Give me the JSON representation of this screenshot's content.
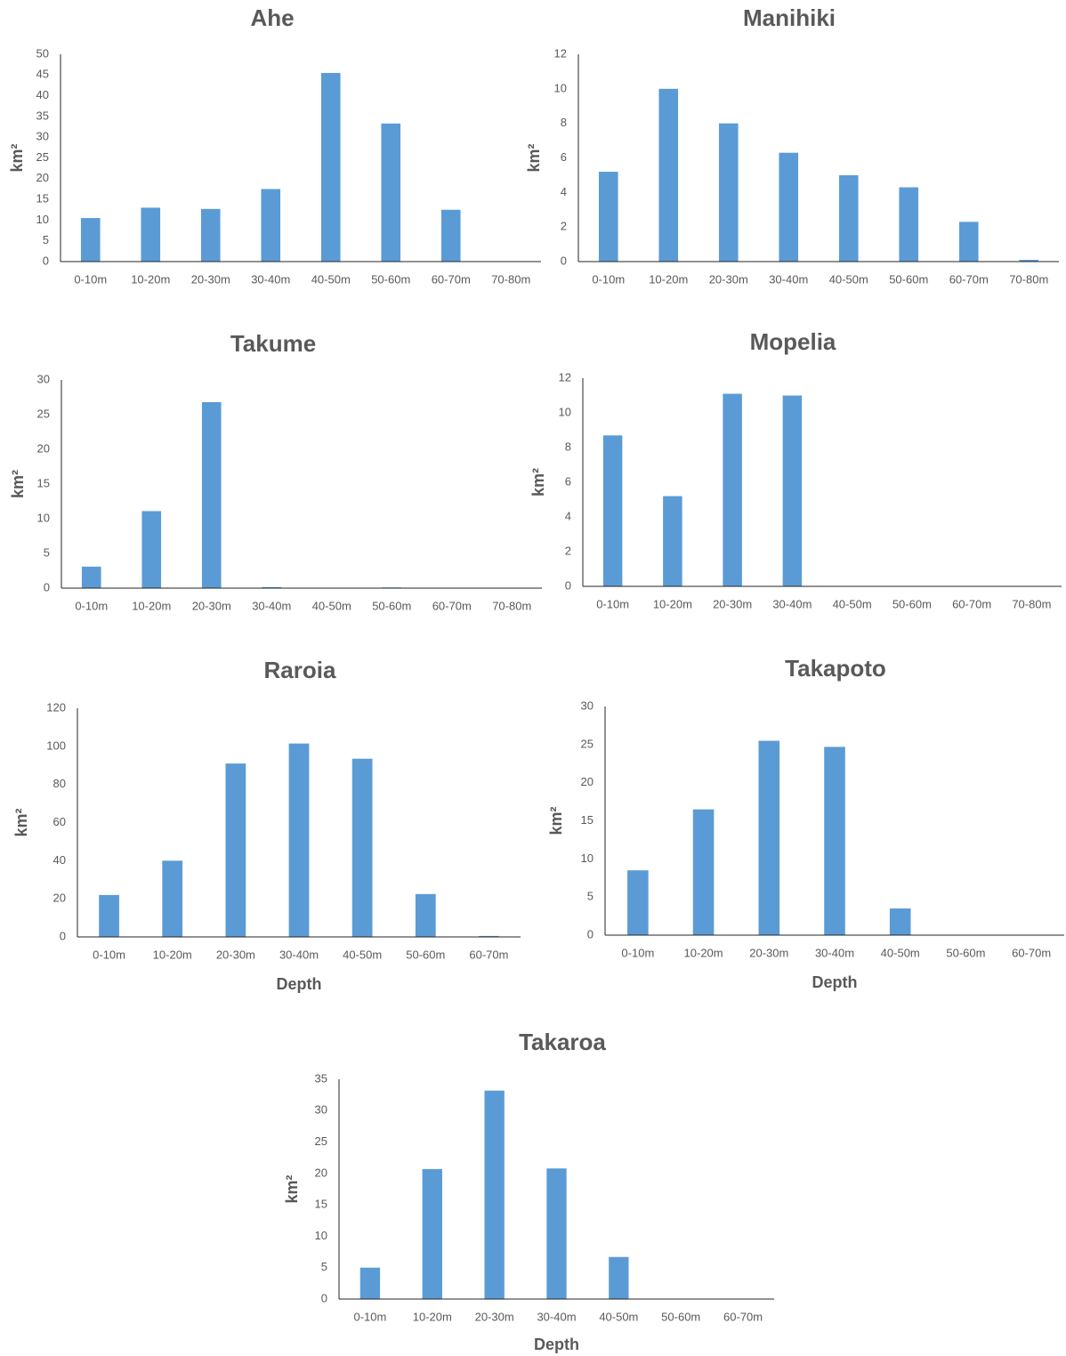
{
  "chart_data": [
    {
      "type": "bar",
      "title": "Ahe",
      "categories": [
        "0-10m",
        "10-20m",
        "20-30m",
        "30-40m",
        "40-50m",
        "50-60m",
        "60-70m",
        "70-80m"
      ],
      "values": [
        10.5,
        13,
        12.7,
        17.5,
        45.5,
        33.3,
        12.5,
        0
      ],
      "ylim": [
        0,
        50
      ],
      "yticks": [
        "0",
        "5",
        "10",
        "15",
        "20",
        "25",
        "30",
        "35",
        "40",
        "45",
        "50"
      ],
      "ylabel": "km²",
      "xlabel": "",
      "color": "#5b9bd5",
      "grid": false
    },
    {
      "type": "bar",
      "title": "Manihiki",
      "categories": [
        "0-10m",
        "10-20m",
        "20-30m",
        "30-40m",
        "40-50m",
        "50-60m",
        "60-70m",
        "70-80m"
      ],
      "values": [
        5.2,
        10,
        8,
        6.3,
        5,
        4.3,
        2.3,
        0.1
      ],
      "ylim": [
        0,
        12
      ],
      "yticks": [
        "0",
        "2",
        "4",
        "6",
        "8",
        "10",
        "12"
      ],
      "ylabel": "km²",
      "xlabel": "",
      "color": "#5b9bd5",
      "grid": false
    },
    {
      "type": "bar",
      "title": "Takume",
      "categories": [
        "0-10m",
        "10-20m",
        "20-30m",
        "30-40m",
        "40-50m",
        "50-60m",
        "60-70m",
        "70-80m"
      ],
      "values": [
        3.1,
        11.1,
        26.8,
        0.15,
        0,
        0.1,
        0,
        0
      ],
      "ylim": [
        0,
        30
      ],
      "yticks": [
        "0",
        "5",
        "10",
        "15",
        "20",
        "25",
        "30"
      ],
      "ylabel": "km²",
      "xlabel": "",
      "color": "#5b9bd5",
      "grid": false
    },
    {
      "type": "bar",
      "title": "Mopelia",
      "categories": [
        "0-10m",
        "10-20m",
        "20-30m",
        "30-40m",
        "40-50m",
        "50-60m",
        "60-70m",
        "70-80m"
      ],
      "values": [
        8.7,
        5.2,
        11.1,
        11,
        0,
        0,
        0,
        0
      ],
      "ylim": [
        0,
        12
      ],
      "yticks": [
        "0",
        "2",
        "4",
        "6",
        "8",
        "10",
        "12"
      ],
      "ylabel": "km²",
      "xlabel": "",
      "color": "#5b9bd5",
      "grid": false
    },
    {
      "type": "bar",
      "title": "Raroia",
      "categories": [
        "0-10m",
        "10-20m",
        "20-30m",
        "30-40m",
        "40-50m",
        "50-60m",
        "60-70m"
      ],
      "values": [
        22,
        40,
        91,
        101.5,
        93.5,
        22.5,
        0.5
      ],
      "ylim": [
        0,
        120
      ],
      "yticks": [
        "0",
        "20",
        "40",
        "60",
        "80",
        "100",
        "120"
      ],
      "ylabel": "km²",
      "xlabel": "Depth",
      "color": "#5b9bd5",
      "grid": false
    },
    {
      "type": "bar",
      "title": "Takapoto",
      "categories": [
        "0-10m",
        "10-20m",
        "20-30m",
        "30-40m",
        "40-50m",
        "50-60m",
        "60-70m"
      ],
      "values": [
        8.5,
        16.5,
        25.5,
        24.7,
        3.5,
        0,
        0
      ],
      "ylim": [
        0,
        30
      ],
      "yticks": [
        "0",
        "5",
        "10",
        "15",
        "20",
        "25",
        "30"
      ],
      "ylabel": "km²",
      "xlabel": "Depth",
      "color": "#5b9bd5",
      "grid": false
    },
    {
      "type": "bar",
      "title": "Takaroa",
      "categories": [
        "0-10m",
        "10-20m",
        "20-30m",
        "30-40m",
        "40-50m",
        "50-60m",
        "60-70m"
      ],
      "values": [
        5,
        20.7,
        33.2,
        20.8,
        6.7,
        0,
        0
      ],
      "ylim": [
        0,
        35
      ],
      "yticks": [
        "0",
        "5",
        "10",
        "15",
        "20",
        "25",
        "30",
        "35"
      ],
      "ylabel": "km²",
      "xlabel": "Depth",
      "color": "#5b9bd5",
      "grid": false
    }
  ]
}
